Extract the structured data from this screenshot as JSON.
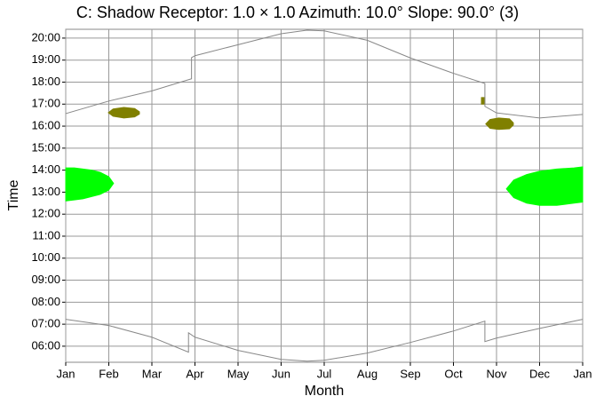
{
  "chart_data": {
    "type": "line",
    "title": "C: Shadow Receptor: 1.0 × 1.0  Azimuth: 10.0°  Slope: 90.0° (3)",
    "x_label": "Month",
    "y_label": "Time",
    "xlim": [
      0,
      12
    ],
    "xticks": [
      {
        "value": 0,
        "label": "Jan"
      },
      {
        "value": 1,
        "label": "Feb"
      },
      {
        "value": 2,
        "label": "Mar"
      },
      {
        "value": 3,
        "label": "Apr"
      },
      {
        "value": 4,
        "label": "May"
      },
      {
        "value": 5,
        "label": "Jun"
      },
      {
        "value": 6,
        "label": "Jul"
      },
      {
        "value": 7,
        "label": "Aug"
      },
      {
        "value": 8,
        "label": "Sep"
      },
      {
        "value": 9,
        "label": "Oct"
      },
      {
        "value": 10,
        "label": "Nov"
      },
      {
        "value": 11,
        "label": "Dec"
      },
      {
        "value": 12,
        "label": "Jan"
      }
    ],
    "ylim": [
      5.27,
      20.4
    ],
    "yticks": [
      {
        "value": 6,
        "label": "06:00"
      },
      {
        "value": 7,
        "label": "07:00"
      },
      {
        "value": 8,
        "label": "08:00"
      },
      {
        "value": 9,
        "label": "09:00"
      },
      {
        "value": 10,
        "label": "10:00"
      },
      {
        "value": 11,
        "label": "11:00"
      },
      {
        "value": 12,
        "label": "12:00"
      },
      {
        "value": 13,
        "label": "13:00"
      },
      {
        "value": 14,
        "label": "14:00"
      },
      {
        "value": 15,
        "label": "15:00"
      },
      {
        "value": 16,
        "label": "16:00"
      },
      {
        "value": 17,
        "label": "17:00"
      },
      {
        "value": 18,
        "label": "18:00"
      },
      {
        "value": 19,
        "label": "19:00"
      },
      {
        "value": 20,
        "label": "20:00"
      }
    ],
    "grid": true,
    "series": [
      {
        "color": "#888888",
        "x": [
          0,
          1,
          2,
          2.92,
          2.92,
          3,
          4,
          5,
          5.6,
          6,
          7,
          8,
          9,
          9.73,
          9.73,
          10,
          11,
          12
        ],
        "values": [
          16.57,
          17.14,
          17.6,
          18.15,
          19.11,
          19.2,
          19.7,
          20.2,
          20.36,
          20.33,
          19.9,
          19.1,
          18.4,
          17.94,
          16.9,
          16.6,
          16.37,
          16.53
        ]
      },
      {
        "color": "#888888",
        "x": [
          0,
          1,
          2,
          2.85,
          2.85,
          3,
          4,
          5,
          5.6,
          6,
          7,
          8,
          9,
          9.73,
          9.73,
          10,
          11,
          12
        ],
        "values": [
          7.22,
          6.94,
          6.41,
          5.73,
          6.61,
          6.41,
          5.81,
          5.4,
          5.32,
          5.36,
          5.69,
          6.17,
          6.69,
          7.14,
          6.21,
          6.37,
          6.81,
          7.22
        ]
      }
    ],
    "bands": [
      {
        "color": "#00ff00",
        "x": [
          0,
          0.2,
          0.4,
          0.6,
          0.8,
          1.0,
          1.11
        ],
        "high": [
          14.1,
          14.1,
          14.05,
          14.0,
          13.9,
          13.7,
          13.4
        ],
        "low": [
          12.6,
          12.65,
          12.7,
          12.8,
          12.9,
          13.1,
          13.4
        ]
      },
      {
        "color": "#00ff00",
        "x": [
          10.23,
          10.4,
          10.7,
          11.0,
          11.4,
          11.8,
          12
        ],
        "high": [
          13.15,
          13.55,
          13.8,
          13.95,
          14.05,
          14.1,
          14.15
        ],
        "low": [
          13.15,
          12.75,
          12.5,
          12.4,
          12.4,
          12.5,
          12.55
        ]
      },
      {
        "color": "#808000",
        "x": [
          0.99,
          1.1,
          1.35,
          1.6,
          1.71
        ],
        "high": [
          16.61,
          16.78,
          16.85,
          16.8,
          16.65
        ],
        "low": [
          16.61,
          16.45,
          16.37,
          16.42,
          16.55
        ]
      },
      {
        "color": "#808000",
        "x": [
          9.75,
          9.85,
          10.05,
          10.3,
          10.39
        ],
        "high": [
          16.1,
          16.3,
          16.37,
          16.33,
          16.15
        ],
        "low": [
          16.1,
          15.9,
          15.85,
          15.88,
          16.05
        ]
      },
      {
        "color": "#808000",
        "x": [
          9.65,
          9.73
        ],
        "high": [
          17.3,
          17.3
        ],
        "low": [
          17.0,
          17.0
        ]
      }
    ]
  }
}
